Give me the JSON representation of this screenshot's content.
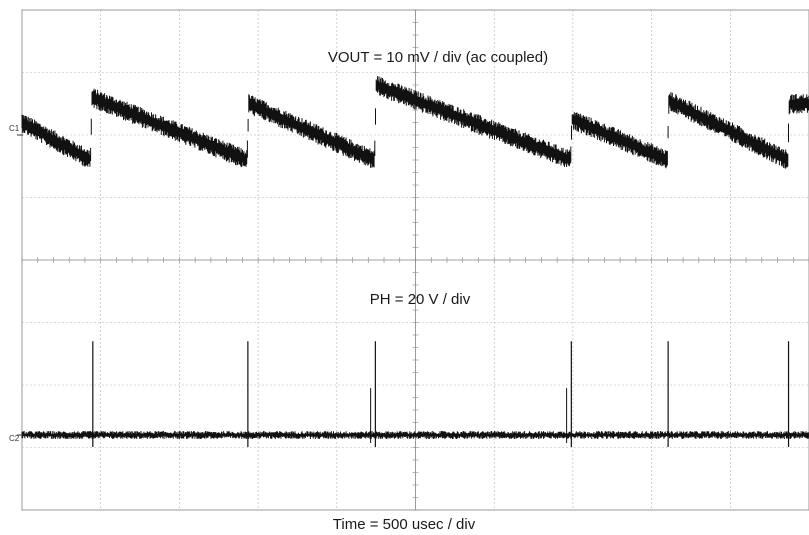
{
  "chart_data": {
    "type": "line",
    "title": "",
    "xlabel": "Time = 500 usec / div",
    "grid": true,
    "divisions": {
      "x": 10,
      "y": 8
    },
    "series": [
      {
        "name": "VOUT = 10 mV / div (ac coupled)",
        "channel_label": "C1",
        "color": "#111111",
        "x_div": [
          0.0,
          0.87,
          0.89,
          2.86,
          2.88,
          4.48,
          4.5,
          6.97,
          6.99,
          8.2,
          8.22,
          9.73,
          9.75,
          10.0
        ],
        "y_div": [
          0.2,
          -0.4,
          0.6,
          -0.4,
          0.5,
          -0.4,
          0.8,
          -0.4,
          0.25,
          -0.4,
          0.55,
          -0.4,
          0.5,
          0.5
        ]
      },
      {
        "name": "PH = 20 V / div",
        "channel_label": "C2",
        "color": "#111111",
        "baseline_div": 0,
        "spikes_x_div": [
          0.9,
          2.87,
          4.49,
          6.98,
          8.21,
          9.74
        ],
        "spike_height_div": 1.5,
        "minor_spikes_x_div": [
          4.43,
          6.92
        ],
        "minor_spike_height_div": 0.75
      }
    ]
  }
}
